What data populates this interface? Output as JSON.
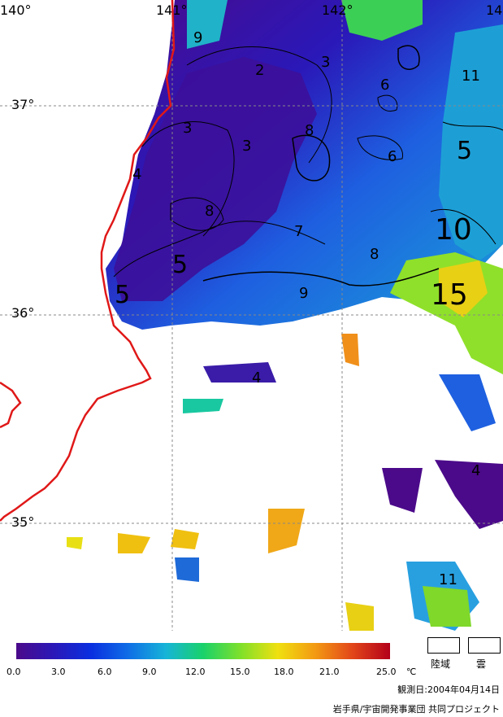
{
  "map": {
    "lon_labels": [
      "140°",
      "141°",
      "142°",
      "14"
    ],
    "lat_labels": [
      "37°",
      "36°",
      "35°"
    ],
    "contour_labels": [
      "9",
      "2",
      "3",
      "3",
      "6",
      "3",
      "8",
      "6",
      "5",
      "4",
      "11",
      "10",
      "8",
      "7",
      "8",
      "5",
      "5",
      "9",
      "15",
      "4",
      "4",
      "11"
    ]
  },
  "legend": {
    "colors": [
      "#4b0a8a",
      "#2a18b8",
      "#0a2fe0",
      "#0f6ee6",
      "#17b4d8",
      "#19d26a",
      "#7fe02a",
      "#f0e010",
      "#f39a12",
      "#e2451a",
      "#b3001a"
    ],
    "tick_labels": [
      "0.0",
      "3.0",
      "6.0",
      "9.0",
      "12.0",
      "15.0",
      "18.0",
      "21.0",
      "25.0"
    ],
    "unit": "℃",
    "land_label": "陸域",
    "cloud_label": "雲",
    "obs_date": "観測日:2004年04月14日",
    "credit": "岩手県/宇宙開発事業団 共同プロジェクト"
  }
}
